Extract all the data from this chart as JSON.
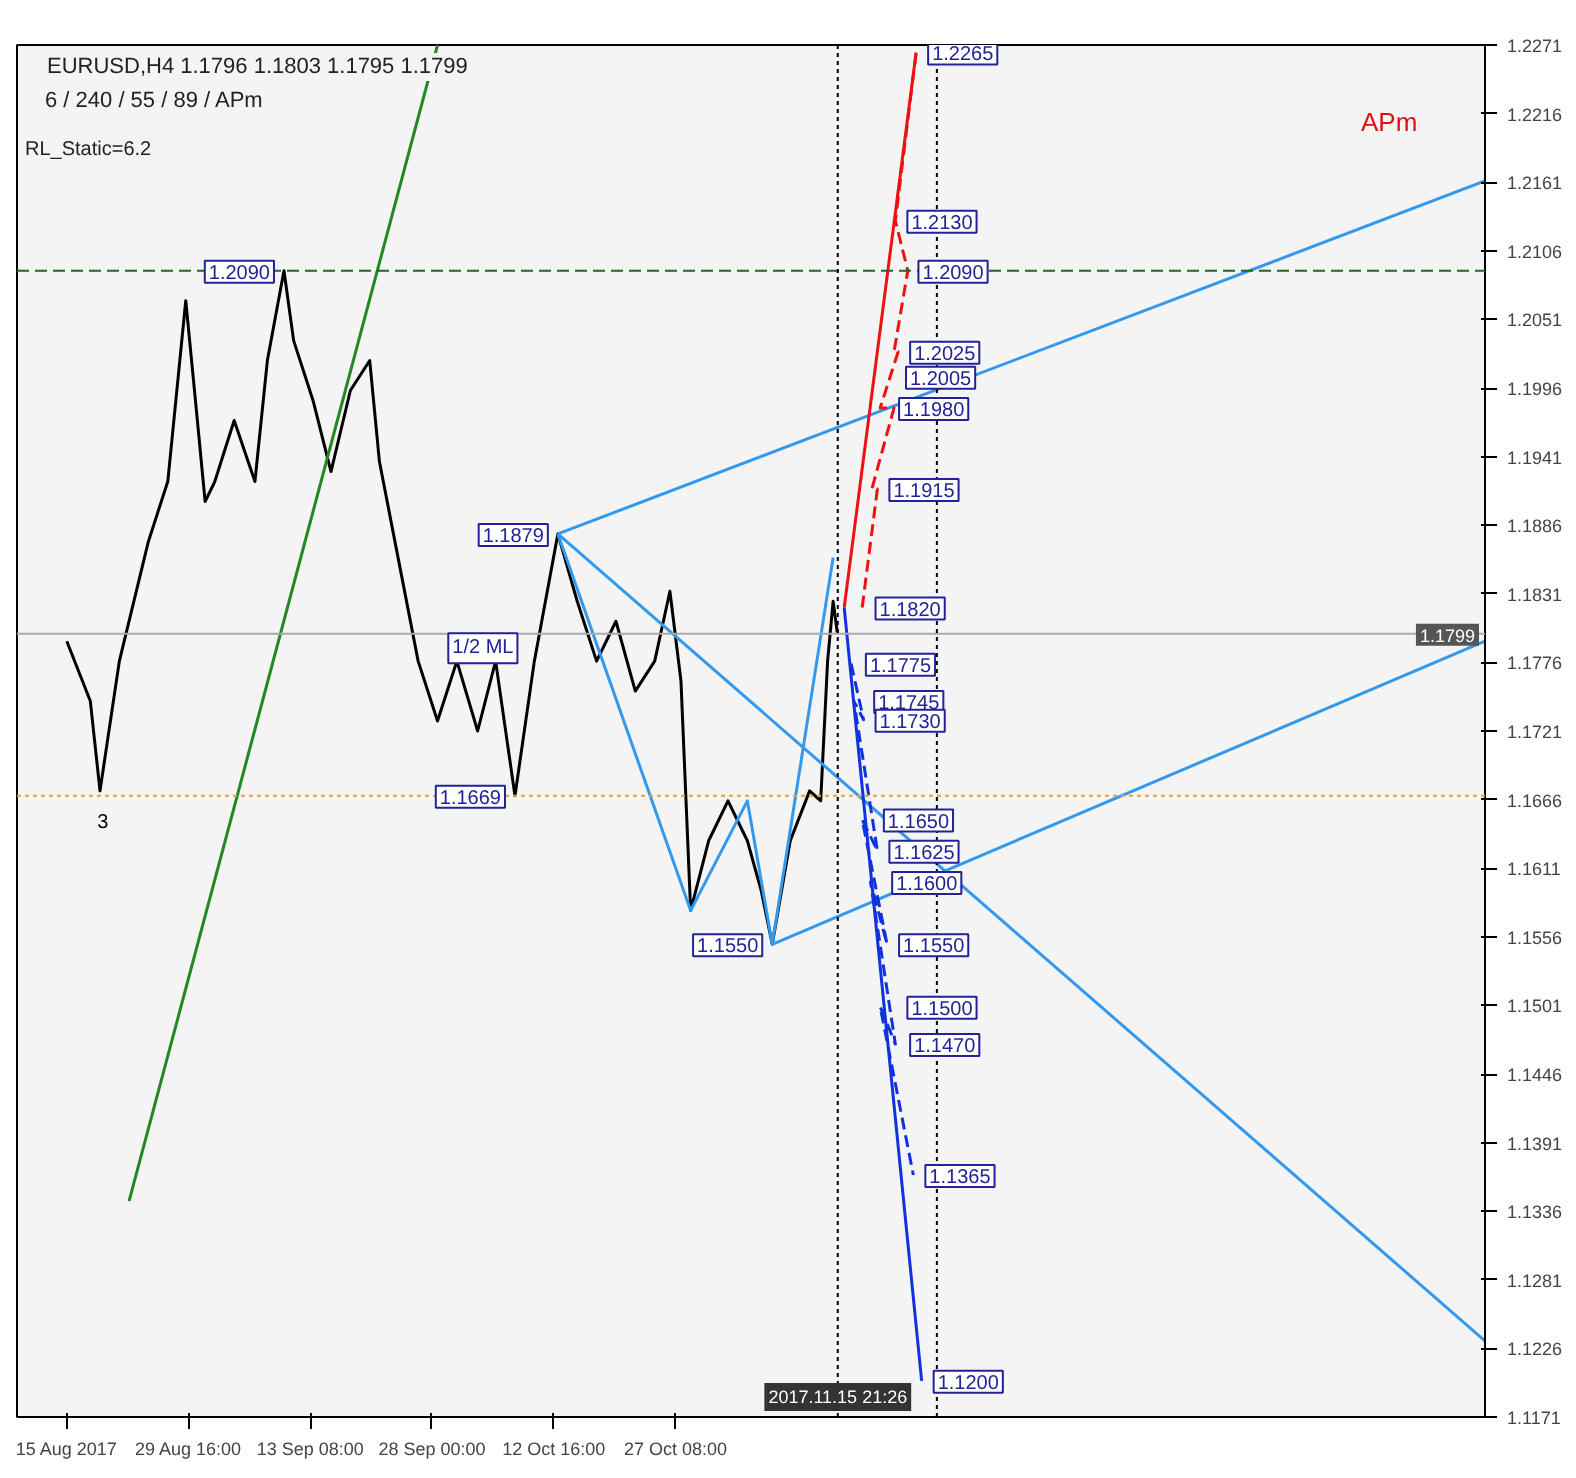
{
  "chart_data": {
    "type": "line",
    "title": "EURUSD,H4  1.1796 1.1803 1.1795 1.1799",
    "subtitle": "6 / 240 / 55 / 89 / APm",
    "xlim": [
      "2017-08-09T00:00",
      "2018-02-01T21:00"
    ],
    "ylim": [
      1.1171,
      1.2271
    ],
    "xticks": [
      {
        "value": "2017-08-15T00:00",
        "label": "15 Aug 2017"
      },
      {
        "value": "2017-08-29T16:00",
        "label": "29 Aug 16:00"
      },
      {
        "value": "2017-09-13T08:00",
        "label": "13 Sep 08:00"
      },
      {
        "value": "2017-09-28T00:00",
        "label": "28 Sep 00:00"
      },
      {
        "value": "2017-10-12T16:00",
        "label": "12 Oct 16:00"
      },
      {
        "value": "2017-10-27T08:00",
        "label": "27 Oct 08:00"
      }
    ],
    "yticks": [
      1.2271,
      1.2216,
      1.2161,
      1.2106,
      1.2051,
      1.1996,
      1.1941,
      1.1886,
      1.1831,
      1.1776,
      1.1721,
      1.1666,
      1.1611,
      1.1556,
      1.1501,
      1.1446,
      1.1391,
      1.1336,
      1.1281,
      1.1226,
      1.1171
    ],
    "grid": false,
    "marker": "none",
    "series": [
      {
        "color": "#000000",
        "line_style": "solid",
        "x": [
          "2017-08-15T00:00",
          "2017-08-17T20:00",
          "2017-08-19T00:00",
          "2017-08-21T08:00",
          "2017-08-24T20:00",
          "2017-08-27T04:00",
          "2017-08-29T08:00",
          "2017-08-30T12:00",
          "2017-08-31T16:00",
          "2017-09-01T20:00",
          "2017-09-04T04:00",
          "2017-09-06T16:00",
          "2017-09-08T04:00",
          "2017-09-10T04:00",
          "2017-09-11T08:00",
          "2017-09-13T16:00",
          "2017-09-15T20:00",
          "2017-09-18T04:00",
          "2017-09-20T12:00",
          "2017-09-21T16:00",
          "2017-09-24T00:00",
          "2017-09-26T08:00",
          "2017-09-28T16:00",
          "2017-10-01T00:00",
          "2017-10-03T12:00",
          "2017-10-05T16:00",
          "2017-10-08T00:00",
          "2017-10-10T08:00",
          "2017-10-13T04:00",
          "2017-10-15T12:00",
          "2017-10-17T20:00",
          "2017-10-20T04:00",
          "2017-10-22T12:00",
          "2017-10-24T20:00",
          "2017-10-26T16:00",
          "2017-10-28T00:00",
          "2017-10-29T04:00",
          "2017-10-31T08:00",
          "2017-11-02T16:00",
          "2017-11-05T00:00",
          "2017-11-06T16:00",
          "2017-11-08T00:00",
          "2017-11-10T04:00",
          "2017-11-12T12:00",
          "2017-11-13T20:00",
          "2017-11-14T16:00",
          "2017-11-15T08:00",
          "2017-11-15T20:00"
        ],
        "values": [
          1.1793,
          1.1745,
          1.1673,
          1.1777,
          1.1873,
          1.1921,
          1.2066,
          1.1986,
          1.1905,
          1.1921,
          1.197,
          1.1921,
          1.2018,
          1.209,
          1.2034,
          1.1986,
          1.1929,
          1.1994,
          1.2018,
          1.1937,
          1.1857,
          1.1777,
          1.1729,
          1.1777,
          1.1721,
          1.1777,
          1.1669,
          1.1777,
          1.1879,
          1.1825,
          1.1777,
          1.1809,
          1.1753,
          1.1777,
          1.1833,
          1.1761,
          1.1577,
          1.1633,
          1.1665,
          1.1633,
          1.1593,
          1.155,
          1.1633,
          1.1673,
          1.1665,
          1.1777,
          1.1825,
          1.18
        ]
      },
      {
        "color": "#3399ee",
        "line_style": "solid",
        "x": [
          "2017-10-13T04:00",
          "2017-10-29T04:00",
          "2017-11-05T00:00",
          "2017-11-08T00:00",
          "2017-11-15T08:00"
        ],
        "values": [
          1.1879,
          1.1577,
          1.1665,
          1.155,
          1.186
        ]
      },
      {
        "color": "#228822",
        "line_style": "solid",
        "x": [
          "2017-08-22T12:00",
          "2017-09-28T16:00"
        ],
        "values": [
          1.1344,
          1.2271
        ]
      },
      {
        "color": "#3399ee",
        "line_style": "solid",
        "x": [
          "2017-10-13T04:00",
          "2018-02-01T21:00"
        ],
        "values": [
          1.1879,
          1.2162
        ]
      },
      {
        "color": "#3399ee",
        "line_style": "solid",
        "x": [
          "2017-11-08T00:00",
          "2018-02-01T21:00"
        ],
        "values": [
          1.155,
          1.1793
        ]
      },
      {
        "color": "#3399ee",
        "line_style": "solid",
        "x": [
          "2017-10-13T04:00",
          "2018-02-01T21:00"
        ],
        "values": [
          1.1879,
          1.1232
        ]
      },
      {
        "color": "#ee1111",
        "line_style": "solid",
        "x": [
          "2017-11-16T16:00",
          "2017-11-25T08:00"
        ],
        "values": [
          1.182,
          1.2265
        ]
      },
      {
        "color": "#ee1111",
        "line_style": "dashed",
        "x": [
          "2017-11-18T20:00",
          "2017-11-20T16:00",
          "2017-11-20T00:00",
          "2017-11-22T16:00",
          "2017-11-21T00:00",
          "2017-11-23T04:00",
          "2017-11-22T16:00",
          "2017-11-24T08:00",
          "2017-11-22T20:00",
          "2017-11-25T08:00"
        ],
        "values": [
          1.182,
          1.1915,
          1.1915,
          1.198,
          1.198,
          1.2025,
          1.2025,
          1.209,
          1.213,
          1.2265
        ]
      },
      {
        "color": "#1133dd",
        "line_style": "solid",
        "x": [
          "2017-11-16T16:00",
          "2017-11-26T00:00"
        ],
        "values": [
          1.182,
          1.12
        ]
      },
      {
        "color": "#1133dd",
        "line_style": "dashed",
        "x": [
          "2017-11-17T12:00",
          "2017-11-19T00:00",
          "2017-11-17T20:00",
          "2017-11-20T16:00",
          "2017-11-18T20:00",
          "2017-11-21T20:00",
          "2017-11-19T20:00",
          "2017-11-22T20:00",
          "2017-11-21T00:00",
          "2017-11-25T00:00"
        ],
        "values": [
          1.1775,
          1.173,
          1.1745,
          1.1625,
          1.165,
          1.155,
          1.16,
          1.147,
          1.15,
          1.1365
        ]
      }
    ],
    "ref_lines": [
      {
        "axis": "y",
        "value": 1.209,
        "color": "#226622",
        "line_style": "dashed"
      },
      {
        "axis": "y",
        "value": 1.1669,
        "color": "#ff9933",
        "line_style": "dotted"
      },
      {
        "axis": "y",
        "value": 1.1799,
        "label": "1.1799",
        "color": "#aaaaaa",
        "line_style": "solid"
      },
      {
        "axis": "x",
        "value": "2017-11-15T21:26",
        "label": "2017.11.15 21:26",
        "color": "#000000",
        "line_style": "dotted"
      },
      {
        "axis": "x",
        "value": "2017-11-27T20:00",
        "color": "#000000",
        "line_style": "dotted"
      }
    ],
    "annotations": [
      "RL_Static=6.2",
      "APm",
      {
        "text": "3",
        "x": "2017-08-18T16:00",
        "y": 1.1669
      },
      {
        "text": "1/2 ML",
        "x": "2017-10-09T12:00",
        "y": 1.1785
      },
      {
        "text": "1.2090",
        "x": "2017-09-10T04:00",
        "y": 1.209
      },
      {
        "text": "1.1879",
        "x": "2017-10-13T04:00",
        "y": 1.1879
      },
      {
        "text": "1.1669",
        "x": "2017-10-08T00:00",
        "y": 1.1669
      },
      {
        "text": "1.1550",
        "x": "2017-11-08T00:00",
        "y": 1.155
      },
      {
        "text": "1.2265",
        "x": "2017-11-25T08:00",
        "y": 1.2265
      },
      {
        "text": "1.2130",
        "x": "2017-11-22T20:00",
        "y": 1.213
      },
      {
        "text": "1.2090",
        "x": "2017-11-24T04:00",
        "y": 1.209
      },
      {
        "text": "1.2025",
        "x": "2017-11-23T04:00",
        "y": 1.2025
      },
      {
        "text": "1.2005",
        "x": "2017-11-22T16:00",
        "y": 1.2005
      },
      {
        "text": "1.1980",
        "x": "2017-11-21T20:00",
        "y": 1.198
      },
      {
        "text": "1.1915",
        "x": "2017-11-20T16:00",
        "y": 1.1915
      },
      {
        "text": "1.1820",
        "x": "2017-11-19T00:00",
        "y": 1.182
      },
      {
        "text": "1.1775",
        "x": "2017-11-17T20:00",
        "y": 1.1775
      },
      {
        "text": "1.1745",
        "x": "2017-11-18T20:00",
        "y": 1.1745
      },
      {
        "text": "1.1730",
        "x": "2017-11-19T00:00",
        "y": 1.173
      },
      {
        "text": "1.1650",
        "x": "2017-11-20T00:00",
        "y": 1.165
      },
      {
        "text": "1.1625",
        "x": "2017-11-20T16:00",
        "y": 1.1625
      },
      {
        "text": "1.1600",
        "x": "2017-11-21T00:00",
        "y": 1.16
      },
      {
        "text": "1.1550",
        "x": "2017-11-21T20:00",
        "y": 1.155
      },
      {
        "text": "1.1500",
        "x": "2017-11-22T20:00",
        "y": 1.15
      },
      {
        "text": "1.1470",
        "x": "2017-11-23T04:00",
        "y": 1.147
      },
      {
        "text": "1.1365",
        "x": "2017-11-25T00:00",
        "y": 1.1365
      },
      {
        "text": "1.1200",
        "x": "2017-11-26T00:00",
        "y": 1.12
      }
    ]
  }
}
